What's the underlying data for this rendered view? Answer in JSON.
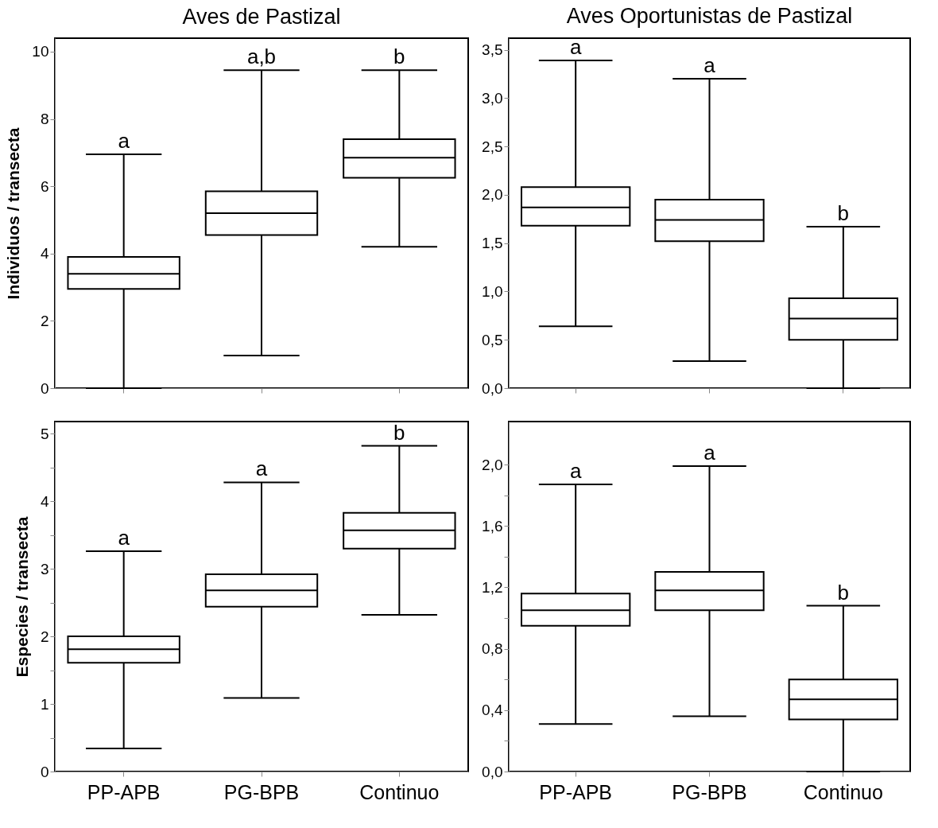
{
  "chart_data": [
    {
      "type": "box",
      "title": "Aves de Pastizal",
      "ylabel": "Individuos / transecta",
      "categories": [
        "PP-APB",
        "PG-BPB",
        "Continuo"
      ],
      "tick_labels": "y",
      "ylim": [
        0,
        10.4
      ],
      "yticks": [
        0,
        2,
        4,
        6,
        8,
        10
      ],
      "boxes": [
        {
          "low": 0,
          "q1": 2.95,
          "median": 3.4,
          "q3": 3.9,
          "high": 6.95
        },
        {
          "low": 0.97,
          "q1": 4.55,
          "median": 5.2,
          "q3": 5.85,
          "high": 9.45
        },
        {
          "low": 4.2,
          "q1": 6.25,
          "median": 6.85,
          "q3": 7.4,
          "high": 9.45
        }
      ],
      "annotations": [
        {
          "text": "a",
          "x": "PP-APB",
          "y": 6.95
        },
        {
          "text": "a,b",
          "x": "PG-BPB",
          "y": 9.45
        },
        {
          "text": "b",
          "x": "Continuo",
          "y": 9.45
        }
      ]
    },
    {
      "type": "box",
      "title": "Aves Oportunistas de Pastizal",
      "categories": [
        "PP-APB",
        "PG-BPB",
        "Continuo"
      ],
      "tick_labels": "y",
      "ylim": [
        0,
        3.62
      ],
      "yticks": [
        {
          "value": 0,
          "label": "0,0"
        },
        {
          "value": 0.5,
          "label": "0,5"
        },
        {
          "value": 1,
          "label": "1,0"
        },
        {
          "value": 1.5,
          "label": "1,5"
        },
        {
          "value": 2,
          "label": "2,0"
        },
        {
          "value": 2.5,
          "label": "2,5"
        },
        {
          "value": 3,
          "label": "3,0"
        },
        {
          "value": 3.5,
          "label": "3,5"
        }
      ],
      "boxes": [
        {
          "low": 0.64,
          "q1": 1.68,
          "median": 1.87,
          "q3": 2.08,
          "high": 3.39
        },
        {
          "low": 0.28,
          "q1": 1.52,
          "median": 1.74,
          "q3": 1.95,
          "high": 3.2
        },
        {
          "low": 0,
          "q1": 0.5,
          "median": 0.72,
          "q3": 0.93,
          "high": 1.67
        }
      ],
      "annotations": [
        {
          "text": "a",
          "x": "PP-APB",
          "y": 3.39
        },
        {
          "text": "a",
          "x": "PG-BPB",
          "y": 3.2
        },
        {
          "text": "b",
          "x": "Continuo",
          "y": 1.67
        }
      ]
    },
    {
      "type": "box",
      "ylabel": "Especies / transecta",
      "categories": [
        "PP-APB",
        "PG-BPB",
        "Continuo"
      ],
      "ylim": [
        0,
        5.18
      ],
      "yticks": [
        0,
        {
          "value": 0.5,
          "label": null
        },
        1,
        {
          "value": 1.5,
          "label": null
        },
        2,
        {
          "value": 2.5,
          "label": null
        },
        3,
        {
          "value": 3.5,
          "label": null
        },
        4,
        {
          "value": 4.5,
          "label": null
        },
        5
      ],
      "boxes": [
        {
          "low": 0.34,
          "q1": 1.61,
          "median": 1.81,
          "q3": 2.0,
          "high": 3.26
        },
        {
          "low": 1.09,
          "q1": 2.44,
          "median": 2.68,
          "q3": 2.92,
          "high": 4.28
        },
        {
          "low": 2.32,
          "q1": 3.3,
          "median": 3.57,
          "q3": 3.83,
          "high": 4.82
        }
      ],
      "annotations": [
        {
          "text": "a",
          "x": "PP-APB",
          "y": 3.26
        },
        {
          "text": "a",
          "x": "PG-BPB",
          "y": 4.28
        },
        {
          "text": "b",
          "x": "Continuo",
          "y": 4.82
        }
      ]
    },
    {
      "type": "box",
      "categories": [
        "PP-APB",
        "PG-BPB",
        "Continuo"
      ],
      "ylim": [
        0,
        2.28
      ],
      "yticks": [
        {
          "value": 0,
          "label": "0,0"
        },
        {
          "value": 0.2,
          "label": null
        },
        {
          "value": 0.4,
          "label": "0,4"
        },
        {
          "value": 0.6,
          "label": null
        },
        {
          "value": 0.8,
          "label": "0,8"
        },
        {
          "value": 1.0,
          "label": null
        },
        {
          "value": 1.2,
          "label": "1,2"
        },
        {
          "value": 1.4,
          "label": null
        },
        {
          "value": 1.6,
          "label": "1,6"
        },
        {
          "value": 1.8,
          "label": null
        },
        {
          "value": 2.0,
          "label": "2,0"
        }
      ],
      "boxes": [
        {
          "low": 0.31,
          "q1": 0.95,
          "median": 1.05,
          "q3": 1.16,
          "high": 1.87
        },
        {
          "low": 0.36,
          "q1": 1.05,
          "median": 1.18,
          "q3": 1.3,
          "high": 1.99
        },
        {
          "low": 0,
          "q1": 0.34,
          "median": 0.47,
          "q3": 0.6,
          "high": 1.08
        }
      ],
      "annotations": [
        {
          "text": "a",
          "x": "PP-APB",
          "y": 1.87
        },
        {
          "text": "a",
          "x": "PG-BPB",
          "y": 1.99
        },
        {
          "text": "b",
          "x": "Continuo",
          "y": 1.08
        }
      ]
    }
  ]
}
